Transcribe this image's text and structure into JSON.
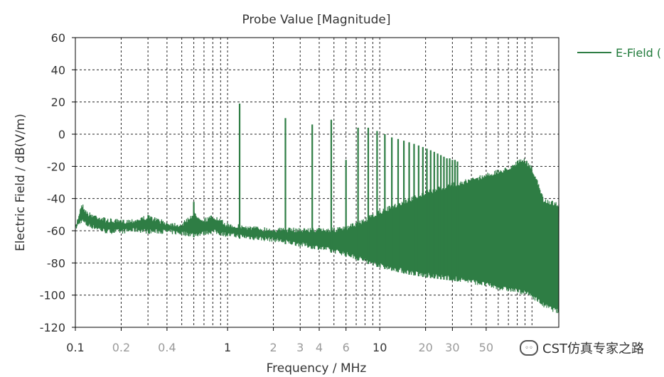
{
  "chart_data": {
    "type": "line",
    "title": "Probe Value [Magnitude]",
    "xlabel": "Frequency / MHz",
    "ylabel": "Electric Field / dB(V/m)",
    "xscale": "log",
    "xlim": [
      0.1,
      150
    ],
    "ylim": [
      -120,
      60
    ],
    "yticks": [
      60,
      40,
      20,
      0,
      -20,
      -40,
      -60,
      -80,
      -100,
      -120
    ],
    "xticks": [
      {
        "value": 0.1,
        "label": "0.1",
        "major": true
      },
      {
        "value": 0.2,
        "label": "0.2",
        "major": false
      },
      {
        "value": 0.4,
        "label": "0.4",
        "major": false
      },
      {
        "value": 1,
        "label": "1",
        "major": true
      },
      {
        "value": 2,
        "label": "2",
        "major": false
      },
      {
        "value": 3,
        "label": "3",
        "major": false
      },
      {
        "value": 4,
        "label": "4",
        "major": false
      },
      {
        "value": 6,
        "label": "6",
        "major": false
      },
      {
        "value": 10,
        "label": "10",
        "major": true
      },
      {
        "value": 20,
        "label": "20",
        "major": false
      },
      {
        "value": 30,
        "label": "30",
        "major": false
      },
      {
        "value": 50,
        "label": "50",
        "major": false
      }
    ],
    "grid": true,
    "legend": "top-right",
    "series": [
      {
        "name": "E-Field (",
        "color": "#2e7d44",
        "envelope_x": [
          0.1,
          0.11,
          0.12,
          0.14,
          0.16,
          0.2,
          0.25,
          0.3,
          0.4,
          0.5,
          0.6,
          0.7,
          0.8,
          1,
          1.5,
          2,
          3,
          4,
          5,
          6,
          8,
          10,
          15,
          20,
          30,
          40,
          50,
          60,
          70,
          80,
          90,
          100,
          110,
          120,
          150
        ],
        "envelope_top": [
          -57,
          -42,
          -48,
          -50,
          -52,
          -53,
          -52,
          -50,
          -54,
          -55,
          -48,
          -52,
          -50,
          -55,
          -57,
          -58,
          -58,
          -58,
          -58,
          -57,
          -52,
          -47,
          -40,
          -35,
          -30,
          -27,
          -24,
          -22,
          -20,
          -16,
          -15,
          -20,
          -30,
          -40,
          -42
        ],
        "envelope_bottom": [
          -60,
          -55,
          -58,
          -60,
          -62,
          -62,
          -61,
          -62,
          -62,
          -63,
          -64,
          -63,
          -62,
          -64,
          -66,
          -67,
          -70,
          -72,
          -74,
          -76,
          -80,
          -83,
          -87,
          -89,
          -91,
          -93,
          -95,
          -97,
          -98,
          -99,
          -100,
          -102,
          -105,
          -108,
          -112
        ],
        "spikes": [
          {
            "x": 0.6,
            "y": -42
          },
          {
            "x": 1.2,
            "y": 19
          },
          {
            "x": 2.4,
            "y": 10
          },
          {
            "x": 3.6,
            "y": 6
          },
          {
            "x": 4.8,
            "y": 9
          },
          {
            "x": 6.0,
            "y": -16
          },
          {
            "x": 7.2,
            "y": 4
          },
          {
            "x": 8.4,
            "y": 4
          },
          {
            "x": 9.6,
            "y": 2
          },
          {
            "x": 10.8,
            "y": 0
          },
          {
            "x": 12.0,
            "y": -2
          },
          {
            "x": 13.2,
            "y": -3
          },
          {
            "x": 14.4,
            "y": -4
          },
          {
            "x": 15.6,
            "y": -5
          },
          {
            "x": 16.8,
            "y": -6
          },
          {
            "x": 18.0,
            "y": -7
          },
          {
            "x": 19.2,
            "y": -8
          },
          {
            "x": 20.4,
            "y": -9
          },
          {
            "x": 21.6,
            "y": -10
          },
          {
            "x": 22.8,
            "y": -11
          },
          {
            "x": 24.0,
            "y": -12
          },
          {
            "x": 25.2,
            "y": -13
          },
          {
            "x": 26.4,
            "y": -14
          },
          {
            "x": 27.6,
            "y": -15
          },
          {
            "x": 28.8,
            "y": -15
          },
          {
            "x": 30.0,
            "y": -16
          },
          {
            "x": 31.2,
            "y": -16
          },
          {
            "x": 32.4,
            "y": -17
          }
        ]
      }
    ]
  },
  "watermark": {
    "icon": "wechat-icon",
    "text": "CST仿真专家之路"
  }
}
